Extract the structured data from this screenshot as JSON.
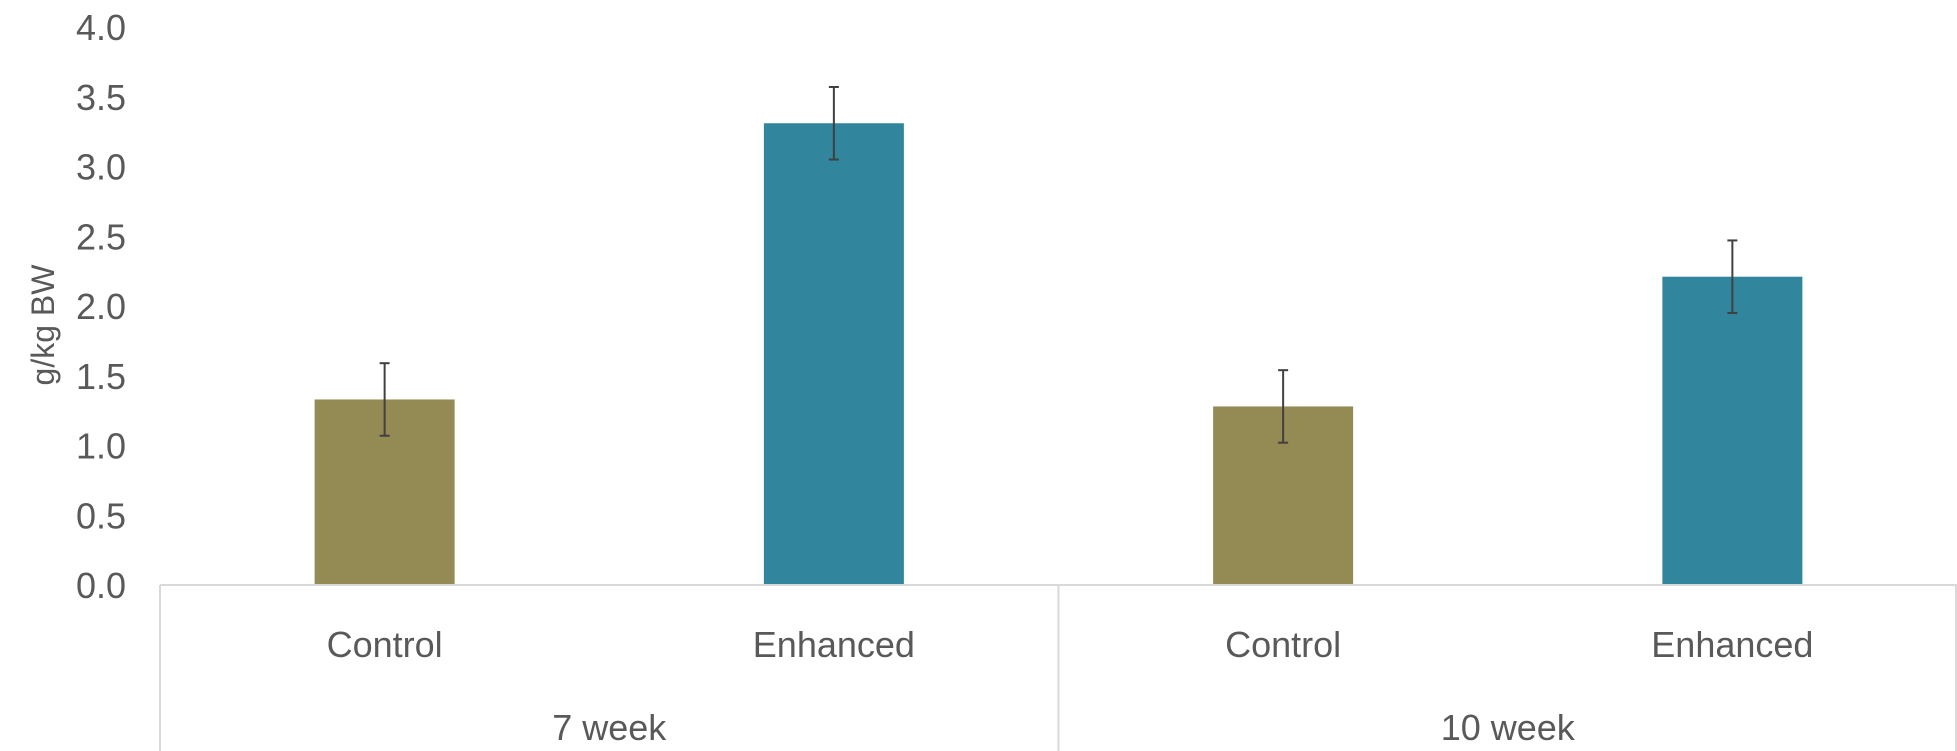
{
  "chart_data": {
    "type": "bar",
    "title": "",
    "xlabel": "",
    "ylabel": "g/kg BW",
    "ylim": [
      0,
      4.0
    ],
    "yticks": [
      "0.0",
      "0.5",
      "1.0",
      "1.5",
      "2.0",
      "2.5",
      "3.0",
      "3.5",
      "4.0"
    ],
    "grid": false,
    "legend": "none",
    "groups": [
      {
        "label": "7 week",
        "categories": [
          "Control",
          "Enhanced"
        ]
      },
      {
        "label": "10 week",
        "categories": [
          "Control",
          "Enhanced"
        ]
      }
    ],
    "bars": [
      {
        "group": "7 week",
        "category": "Control",
        "value": 1.33,
        "error": 0.26,
        "color": "#948a54"
      },
      {
        "group": "7 week",
        "category": "Enhanced",
        "value": 3.31,
        "error": 0.26,
        "color": "#31859c"
      },
      {
        "group": "10 week",
        "category": "Control",
        "value": 1.28,
        "error": 0.26,
        "color": "#948a54"
      },
      {
        "group": "10 week",
        "category": "Enhanced",
        "value": 2.21,
        "error": 0.26,
        "color": "#31859c"
      }
    ]
  }
}
